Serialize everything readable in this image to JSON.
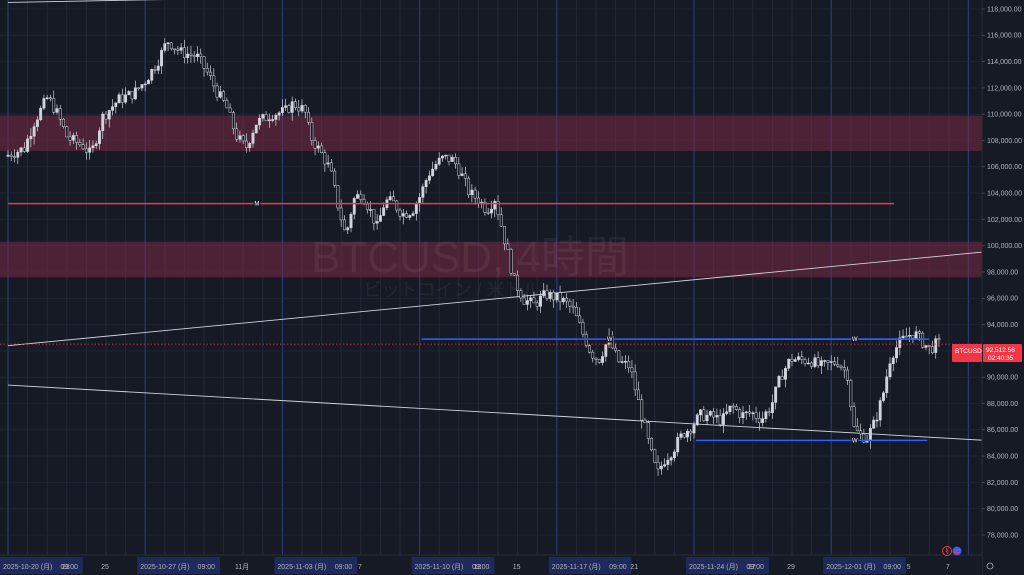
{
  "chart_data": {
    "type": "candlestick",
    "title": "BTCUSD, 4時間",
    "subtitle": "ビットコイン / 米ドル",
    "symbol": "BTCUSD",
    "last_price_label": "92,512.56",
    "countdown_label": "02:40:35",
    "last_price": 92512.56,
    "ylim": [
      77000,
      119000
    ],
    "yticks": [
      {
        "value": 78000,
        "label": "78,000.00"
      },
      {
        "value": 80000,
        "label": "80,000.00"
      },
      {
        "value": 82000,
        "label": "82,000.00"
      },
      {
        "value": 84000,
        "label": "84,000.00"
      },
      {
        "value": 86000,
        "label": "86,000.00"
      },
      {
        "value": 88000,
        "label": "88,000.00"
      },
      {
        "value": 90000,
        "label": "90,000.00"
      },
      {
        "value": 92000,
        "label": "92,000.00"
      },
      {
        "value": 94000,
        "label": "94,000.00"
      },
      {
        "value": 96000,
        "label": "96,000.00"
      },
      {
        "value": 98000,
        "label": "98,000.00"
      },
      {
        "value": 100000,
        "label": "100,000.00"
      },
      {
        "value": 102000,
        "label": "102,000.00"
      },
      {
        "value": 104000,
        "label": "104,000.00"
      },
      {
        "value": 106000,
        "label": "106,000.00"
      },
      {
        "value": 108000,
        "label": "108,000.00"
      },
      {
        "value": 110000,
        "label": "110,000.00"
      },
      {
        "value": 112000,
        "label": "112,000.00"
      },
      {
        "value": 114000,
        "label": "114,000.00"
      },
      {
        "value": 116000,
        "label": "116,000.00"
      },
      {
        "value": 118000,
        "label": "118,000.00"
      }
    ],
    "xlabels": [
      {
        "day": 0,
        "label": "2025-10-20 (月)",
        "highlight": true
      },
      {
        "day": 0.375,
        "label": "09:00",
        "highlight": true
      },
      {
        "day": 3,
        "label": "23",
        "highlight": false
      },
      {
        "day": 5,
        "label": "25",
        "highlight": false
      },
      {
        "day": 7,
        "label": "2025-10-27 (月)",
        "highlight": true
      },
      {
        "day": 7.375,
        "label": "09:00",
        "highlight": true
      },
      {
        "day": 12,
        "label": "11月",
        "highlight": false
      },
      {
        "day": 14,
        "label": "2025-11-03 (月)",
        "highlight": true
      },
      {
        "day": 14.375,
        "label": "09:00",
        "highlight": true
      },
      {
        "day": 18,
        "label": "7",
        "highlight": false
      },
      {
        "day": 21,
        "label": "2025-11-10 (月)",
        "highlight": true
      },
      {
        "day": 21.375,
        "label": "09:00",
        "highlight": true
      },
      {
        "day": 24,
        "label": "13",
        "highlight": false
      },
      {
        "day": 26,
        "label": "15",
        "highlight": false
      },
      {
        "day": 28,
        "label": "2025-11-17 (月)",
        "highlight": true
      },
      {
        "day": 28.375,
        "label": "09:00",
        "highlight": true
      },
      {
        "day": 32,
        "label": "21",
        "highlight": false
      },
      {
        "day": 35,
        "label": "2025-11-24 (月)",
        "highlight": true
      },
      {
        "day": 35.375,
        "label": "09:00",
        "highlight": true
      },
      {
        "day": 38,
        "label": "27",
        "highlight": false
      },
      {
        "day": 40,
        "label": "29",
        "highlight": false
      },
      {
        "day": 42,
        "label": "2025-12-01 (月)",
        "highlight": true
      },
      {
        "day": 42.375,
        "label": "09:00",
        "highlight": true
      },
      {
        "day": 46,
        "label": "5",
        "highlight": false
      },
      {
        "day": 48,
        "label": "7",
        "highlight": false
      }
    ],
    "price_path": [
      [
        0,
        106800
      ],
      [
        1,
        107400
      ],
      [
        1.5,
        109400
      ],
      [
        2.2,
        111300
      ],
      [
        2.7,
        110000
      ],
      [
        3.2,
        108200
      ],
      [
        4,
        107600
      ],
      [
        4.4,
        106900
      ],
      [
        5,
        109800
      ],
      [
        5.8,
        111100
      ],
      [
        6.6,
        111600
      ],
      [
        7.2,
        112600
      ],
      [
        7.8,
        114000
      ],
      [
        8.3,
        115600
      ],
      [
        9,
        114700
      ],
      [
        9.8,
        114400
      ],
      [
        10.4,
        113000
      ],
      [
        10.9,
        111500
      ],
      [
        11.3,
        110600
      ],
      [
        11.8,
        108400
      ],
      [
        12.3,
        107400
      ],
      [
        12.8,
        109300
      ],
      [
        13.6,
        110000
      ],
      [
        14.3,
        110200
      ],
      [
        14.7,
        110800
      ],
      [
        15.3,
        110300
      ],
      [
        15.6,
        108300
      ],
      [
        16.2,
        106900
      ],
      [
        16.6,
        105800
      ],
      [
        17,
        103100
      ],
      [
        17.4,
        100700
      ],
      [
        17.8,
        103500
      ],
      [
        18.2,
        104000
      ],
      [
        18.7,
        102500
      ],
      [
        19,
        101400
      ],
      [
        19.4,
        103400
      ],
      [
        19.8,
        103300
      ],
      [
        20.3,
        102400
      ],
      [
        20.8,
        102700
      ],
      [
        21.2,
        103800
      ],
      [
        21.6,
        105400
      ],
      [
        22,
        106200
      ],
      [
        22.4,
        106700
      ],
      [
        22.9,
        106500
      ],
      [
        23.3,
        105400
      ],
      [
        23.7,
        104000
      ],
      [
        24.2,
        103500
      ],
      [
        24.6,
        102700
      ],
      [
        25,
        103600
      ],
      [
        25.3,
        101800
      ],
      [
        25.6,
        99800
      ],
      [
        26,
        97300
      ],
      [
        26.5,
        95900
      ],
      [
        27,
        95500
      ],
      [
        27.6,
        96300
      ],
      [
        28.2,
        96000
      ],
      [
        28.6,
        95700
      ],
      [
        29,
        95100
      ],
      [
        29.5,
        93300
      ],
      [
        29.9,
        91900
      ],
      [
        30.3,
        91300
      ],
      [
        30.8,
        92900
      ],
      [
        31.3,
        91200
      ],
      [
        31.9,
        90800
      ],
      [
        32.3,
        88300
      ],
      [
        32.7,
        85900
      ],
      [
        33,
        84100
      ],
      [
        33.3,
        82600
      ],
      [
        33.6,
        83600
      ],
      [
        34.1,
        84500
      ],
      [
        34.6,
        85700
      ],
      [
        35,
        86200
      ],
      [
        35.5,
        87100
      ],
      [
        36.1,
        87000
      ],
      [
        36.6,
        86700
      ],
      [
        37.1,
        87800
      ],
      [
        37.6,
        87100
      ],
      [
        38.1,
        87300
      ],
      [
        38.6,
        86800
      ],
      [
        39.1,
        87800
      ],
      [
        39.6,
        90100
      ],
      [
        40.1,
        91400
      ],
      [
        40.6,
        91300
      ],
      [
        41.1,
        91300
      ],
      [
        41.6,
        90800
      ],
      [
        42.1,
        91000
      ],
      [
        42.5,
        91200
      ],
      [
        43,
        90200
      ],
      [
        43.3,
        86200
      ],
      [
        43.6,
        85600
      ],
      [
        44,
        85400
      ],
      [
        44.4,
        86600
      ],
      [
        44.8,
        88600
      ],
      [
        45.2,
        91600
      ],
      [
        45.6,
        92500
      ],
      [
        46,
        93100
      ],
      [
        46.4,
        93400
      ],
      [
        46.8,
        92700
      ],
      [
        47.2,
        92100
      ],
      [
        47.5,
        92500
      ]
    ],
    "supply_zones": [
      {
        "from": 107200,
        "to": 109900
      },
      {
        "from": 97600,
        "to": 100300
      }
    ],
    "horizontal_lines": [
      {
        "price": 103200,
        "start_day": 0,
        "end_day": 45.2,
        "color": "#f23645",
        "marker": "M",
        "marker_day": 12.7
      },
      {
        "price": 92900,
        "start_day": 21.1,
        "end_day": 47.0,
        "color": "#2962ff",
        "marker": "W",
        "marker_day": 30.7
      },
      {
        "price": 92900,
        "start_day": 35.1,
        "end_day": 46.5,
        "color": "#2962ff",
        "marker": "W",
        "marker_day": 43.2
      },
      {
        "price": 85200,
        "start_day": 35.1,
        "end_day": 46.9,
        "color": "#2962ff",
        "marker": "W",
        "marker_day": 43.2
      }
    ],
    "trendlines": [
      {
        "from": [
          0,
          89400
        ],
        "to": [
          51,
          85100
        ]
      },
      {
        "from": [
          0,
          92400
        ],
        "to": [
          51,
          99700
        ]
      },
      {
        "from": [
          0,
          118500
        ],
        "to": [
          18.2,
          119000
        ]
      }
    ],
    "grid": true,
    "colors": {
      "background": "#161a25",
      "candle": "#d1d4dc",
      "zone": "#7a2a45",
      "price_tag": "#f23645",
      "grid_minor": "#242938",
      "grid_major": "#2c3a73"
    }
  }
}
